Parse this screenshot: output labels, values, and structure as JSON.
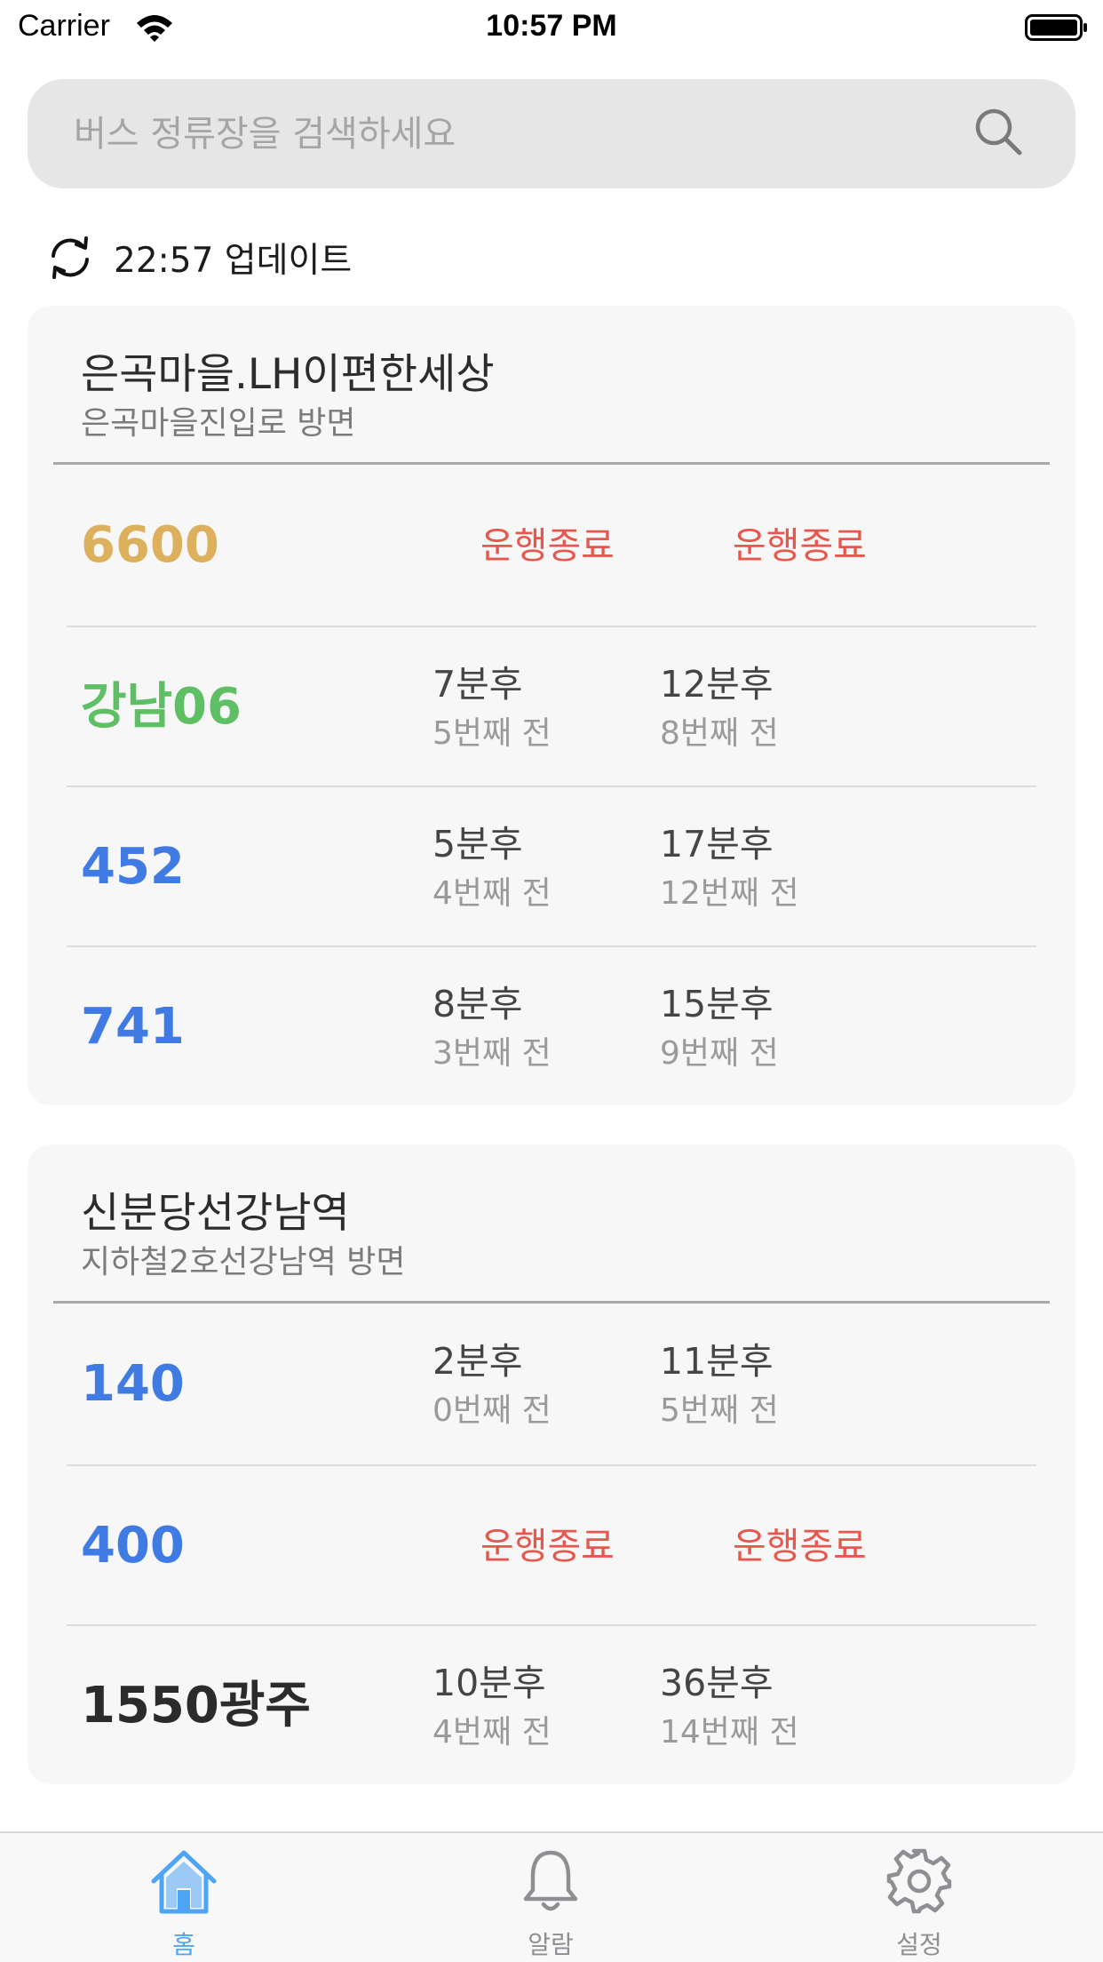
{
  "status_bar": {
    "carrier": "Carrier",
    "time": "10:57 PM"
  },
  "search": {
    "placeholder": "버스 정류장을 검색하세요",
    "value": ""
  },
  "update": {
    "text": "22:57 업데이트"
  },
  "stops": [
    {
      "name": "은곡마을.LH이편한세상",
      "direction": "은곡마을진입로 방면",
      "buses": [
        {
          "route": "6600",
          "color": "#dcb05d",
          "first": {
            "ended": "운행종료"
          },
          "second": {
            "ended": "운행종료"
          }
        },
        {
          "route": "강남06",
          "color": "#5fbf64",
          "first": {
            "min": "7분후",
            "stops": "5번째 전"
          },
          "second": {
            "min": "12분후",
            "stops": "8번째 전"
          }
        },
        {
          "route": "452",
          "color": "#3f7be3",
          "first": {
            "min": "5분후",
            "stops": "4번째 전"
          },
          "second": {
            "min": "17분후",
            "stops": "12번째 전"
          }
        },
        {
          "route": "741",
          "color": "#3f7be3",
          "first": {
            "min": "8분후",
            "stops": "3번째 전"
          },
          "second": {
            "min": "15분후",
            "stops": "9번째 전"
          }
        }
      ]
    },
    {
      "name": "신분당선강남역",
      "direction": "지하철2호선강남역 방면",
      "buses": [
        {
          "route": "140",
          "color": "#3f7be3",
          "first": {
            "min": "2분후",
            "stops": "0번째 전"
          },
          "second": {
            "min": "11분후",
            "stops": "5번째 전"
          }
        },
        {
          "route": "400",
          "color": "#3f7be3",
          "first": {
            "ended": "운행종료"
          },
          "second": {
            "ended": "운행종료"
          }
        },
        {
          "route": "1550광주",
          "color": "#2b2b2b",
          "first": {
            "min": "10분후",
            "stops": "4번째 전"
          },
          "second": {
            "min": "36분후",
            "stops": "14번째 전"
          }
        }
      ]
    }
  ],
  "tabs": [
    {
      "label": "홈",
      "icon": "home-icon",
      "active": true
    },
    {
      "label": "알람",
      "icon": "bell-icon",
      "active": false
    },
    {
      "label": "설정",
      "icon": "gear-icon",
      "active": false
    }
  ],
  "colors": {
    "accent": "#4ea4f5",
    "inactive": "#8e8e93",
    "ended": "#e8574d"
  }
}
